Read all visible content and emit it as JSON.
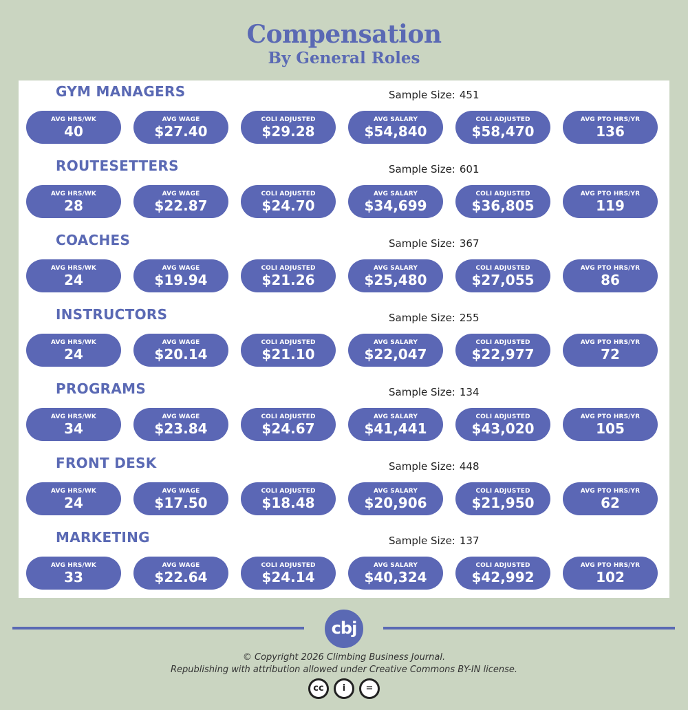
{
  "header": {
    "title": "Compensation",
    "subtitle": "By General Roles"
  },
  "labels": {
    "sample": "Sample Size:",
    "hrs": "AVG HRS/WK",
    "wage": "AVG WAGE",
    "coli": "COLI ADJUSTED",
    "salary": "AVG SALARY",
    "pto": "AVG PTO HRS/YR"
  },
  "roles": [
    {
      "name": "GYM MANAGERS",
      "sample": "451",
      "hrs": "40",
      "wage": "$27.40",
      "coli_wage": "$29.28",
      "salary": "$54,840",
      "coli_salary": "$58,470",
      "pto": "136"
    },
    {
      "name": "ROUTESETTERS",
      "sample": "601",
      "hrs": "28",
      "wage": "$22.87",
      "coli_wage": "$24.70",
      "salary": "$34,699",
      "coli_salary": "$36,805",
      "pto": "119"
    },
    {
      "name": "COACHES",
      "sample": "367",
      "hrs": "24",
      "wage": "$19.94",
      "coli_wage": "$21.26",
      "salary": "$25,480",
      "coli_salary": "$27,055",
      "pto": "86"
    },
    {
      "name": "INSTRUCTORS",
      "sample": "255",
      "hrs": "24",
      "wage": "$20.14",
      "coli_wage": "$21.10",
      "salary": "$22,047",
      "coli_salary": "$22,977",
      "pto": "72"
    },
    {
      "name": "PROGRAMS",
      "sample": "134",
      "hrs": "34",
      "wage": "$23.84",
      "coli_wage": "$24.67",
      "salary": "$41,441",
      "coli_salary": "$43,020",
      "pto": "105"
    },
    {
      "name": "FRONT DESK",
      "sample": "448",
      "hrs": "24",
      "wage": "$17.50",
      "coli_wage": "$18.48",
      "salary": "$20,906",
      "coli_salary": "$21,950",
      "pto": "62"
    },
    {
      "name": "MARKETING",
      "sample": "137",
      "hrs": "33",
      "wage": "$22.64",
      "coli_wage": "$24.14",
      "salary": "$40,324",
      "coli_salary": "$42,992",
      "pto": "102"
    }
  ],
  "footer": {
    "logo": "cbj",
    "copyright": "© Copyright 2026 Climbing Business Journal.",
    "license": "Republishing with attribution allowed under Creative Commons BY-IN license.",
    "cc_icons": [
      "cc-icon",
      "by-attribution-icon",
      "no-derivatives-icon"
    ],
    "cc_glyphs": [
      "cc",
      "i",
      "="
    ]
  },
  "colors": {
    "background": "#cad5c1",
    "accent": "#5a69b4",
    "pill": "#5b67b5",
    "panel": "#ffffff"
  }
}
